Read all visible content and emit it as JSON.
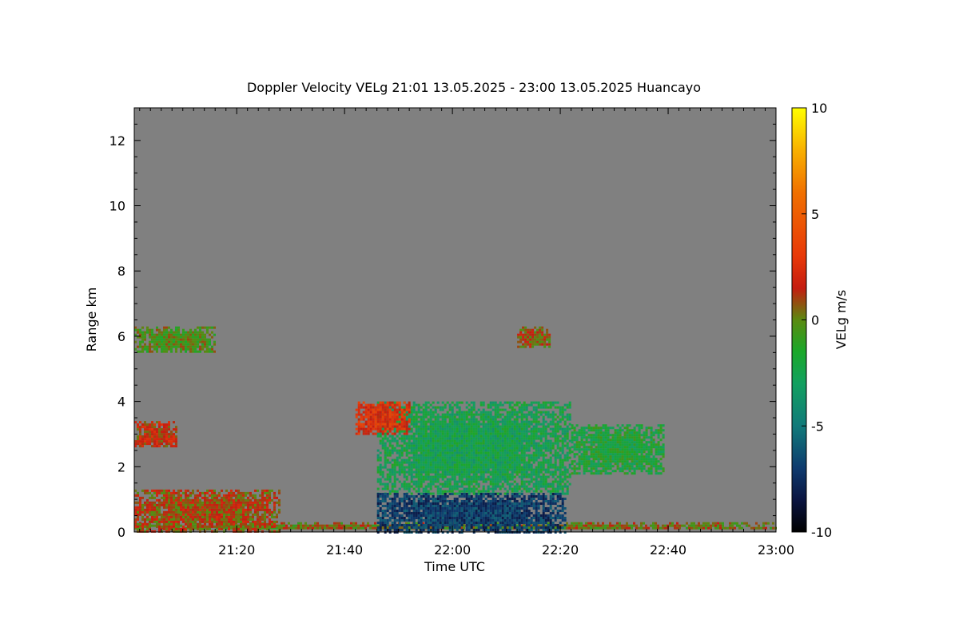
{
  "chart_data": {
    "type": "heatmap",
    "title": "Doppler Velocity VELg   21:01 13.05.2025 - 23:00 13.05.2025 Huancayo",
    "xlabel": "Time UTC",
    "ylabel": "Range km",
    "colorbar_label": "VELg m/s",
    "x_time_range": [
      "21:01",
      "23:00"
    ],
    "xlim_minutes_after_2100": [
      1,
      120
    ],
    "x_ticks": [
      {
        "label": "21:20",
        "minute": 20
      },
      {
        "label": "21:40",
        "minute": 40
      },
      {
        "label": "22:00",
        "minute": 60
      },
      {
        "label": "22:20",
        "minute": 80
      },
      {
        "label": "22:40",
        "minute": 100
      },
      {
        "label": "23:00",
        "minute": 120
      }
    ],
    "ylim": [
      0,
      13
    ],
    "y_ticks": [
      {
        "label": "0",
        "value": 0
      },
      {
        "label": "2",
        "value": 2
      },
      {
        "label": "4",
        "value": 4
      },
      {
        "label": "6",
        "value": 6
      },
      {
        "label": "8",
        "value": 8
      },
      {
        "label": "10",
        "value": 10
      },
      {
        "label": "12",
        "value": 12
      }
    ],
    "colorbar_range": [
      -10,
      10
    ],
    "colorbar_ticks": [
      {
        "label": "10",
        "value": 10
      },
      {
        "label": "5",
        "value": 5
      },
      {
        "label": "0",
        "value": 0
      },
      {
        "label": "-5",
        "value": -5
      },
      {
        "label": "-10",
        "value": -10
      }
    ],
    "background_color": "#808080",
    "colormap": [
      {
        "v": -10,
        "c": "#000000"
      },
      {
        "v": -8.5,
        "c": "#0a1440"
      },
      {
        "v": -7,
        "c": "#0e3a6e"
      },
      {
        "v": -5,
        "c": "#117a7a"
      },
      {
        "v": -3,
        "c": "#12a060"
      },
      {
        "v": -1.5,
        "c": "#1aa82a"
      },
      {
        "v": 0,
        "c": "#5a8a10"
      },
      {
        "v": 1.5,
        "c": "#c41c10"
      },
      {
        "v": 3,
        "c": "#e83808"
      },
      {
        "v": 6,
        "c": "#f07000"
      },
      {
        "v": 8,
        "c": "#f8b000"
      },
      {
        "v": 10,
        "c": "#ffff00"
      }
    ],
    "echo_regions": [
      {
        "name": "upper-layer-left",
        "t": [
          1,
          16
        ],
        "z": [
          5.5,
          6.3
        ],
        "v": -0.3
      },
      {
        "name": "upper-layer-mid",
        "t": [
          72,
          78
        ],
        "z": [
          5.7,
          6.3
        ],
        "v": 0.8
      },
      {
        "name": "mid-cloud-left",
        "t": [
          1,
          9
        ],
        "z": [
          2.6,
          3.4
        ],
        "v": 1.5
      },
      {
        "name": "surface-clutter",
        "t": [
          1,
          120
        ],
        "z": [
          0.1,
          0.3
        ],
        "v": 0.3
      },
      {
        "name": "boundary-layer-early",
        "t": [
          1,
          28
        ],
        "z": [
          0,
          1.3
        ],
        "v": 1.0
      },
      {
        "name": "convective-cloud-main",
        "t": [
          46,
          82
        ],
        "z": [
          1.2,
          4.0
        ],
        "v": -2.5
      },
      {
        "name": "convective-cloud-edge-red",
        "t": [
          42,
          52
        ],
        "z": [
          3.0,
          4.0
        ],
        "v": 2.5
      },
      {
        "name": "anvil-extension",
        "t": [
          82,
          99
        ],
        "z": [
          1.8,
          3.3
        ],
        "v": -1.8
      },
      {
        "name": "precipitation-shaft",
        "t": [
          46,
          81
        ],
        "z": [
          0,
          1.2
        ],
        "v": -7.0
      }
    ]
  }
}
